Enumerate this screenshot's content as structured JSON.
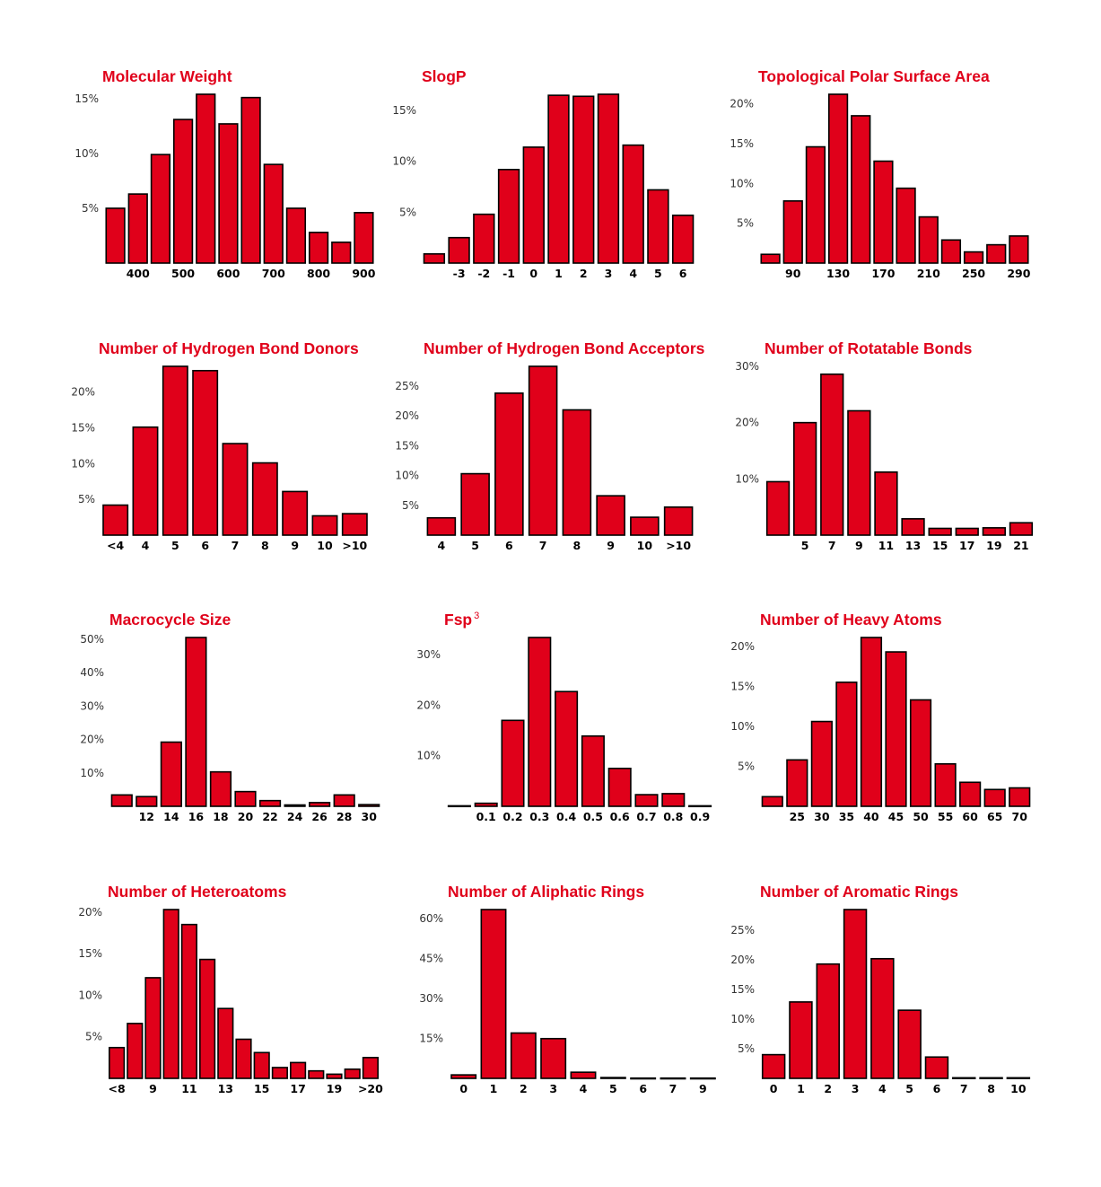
{
  "colors": {
    "bar_fill": "#e0001a",
    "bar_stroke": "#000000",
    "title": "#e0001a"
  },
  "chart_data": [
    {
      "type": "bar",
      "title": "Molecular Weight",
      "xlabel": "",
      "ylabel": "",
      "values": [
        5.0,
        6.3,
        9.9,
        13.1,
        15.4,
        12.7,
        15.1,
        9.0,
        5.0,
        2.8,
        1.9,
        4.6
      ],
      "x_tick_labels": [
        "400",
        "500",
        "600",
        "700",
        "800",
        "900"
      ],
      "y_ticks": [
        5,
        10,
        15
      ],
      "ylim": [
        0,
        15.4
      ]
    },
    {
      "type": "bar",
      "title": "SlogP",
      "xlabel": "",
      "ylabel": "",
      "values": [
        0.9,
        2.5,
        4.8,
        9.2,
        11.4,
        16.5,
        16.4,
        16.6,
        11.6,
        7.2,
        4.7
      ],
      "x_tick_labels": [
        "-3",
        "-2",
        "-1",
        "0",
        "1",
        "2",
        "3",
        "4",
        "5",
        "6"
      ],
      "y_ticks": [
        5,
        10,
        15
      ],
      "ylim": [
        0,
        16.6
      ]
    },
    {
      "type": "bar",
      "title": "Topological Polar Surface Area",
      "xlabel": "",
      "ylabel": "",
      "values": [
        1.1,
        7.8,
        14.6,
        21.2,
        18.5,
        12.8,
        9.4,
        5.8,
        2.9,
        1.4,
        2.3,
        3.4
      ],
      "x_tick_labels": [
        "90",
        "130",
        "170",
        "210",
        "250",
        "290"
      ],
      "y_ticks": [
        5,
        10,
        15,
        20
      ],
      "ylim": [
        0,
        21.2
      ]
    },
    {
      "type": "bar",
      "title": "Number of Hydrogen Bond Donors",
      "xlabel": "",
      "ylabel": "",
      "values": [
        4.2,
        15.1,
        23.6,
        23.0,
        12.8,
        10.1,
        6.1,
        2.7,
        3.0
      ],
      "x_tick_labels": [
        "<4",
        "4",
        "5",
        "6",
        "7",
        "8",
        "9",
        "10",
        ">10"
      ],
      "y_ticks": [
        5,
        10,
        15,
        20
      ],
      "ylim": [
        0,
        23.6
      ]
    },
    {
      "type": "bar",
      "title": "Number of Hydrogen Bond Acceptors",
      "xlabel": "",
      "ylabel": "",
      "values": [
        2.9,
        10.3,
        23.8,
        28.3,
        21.0,
        6.6,
        3.0,
        4.7
      ],
      "x_tick_labels": [
        "4",
        "5",
        "6",
        "7",
        "8",
        "9",
        "10",
        ">10"
      ],
      "y_ticks": [
        5,
        10,
        15,
        20,
        25
      ],
      "ylim": [
        0,
        28.3
      ]
    },
    {
      "type": "bar",
      "title": "Number of Rotatable Bonds",
      "xlabel": "",
      "ylabel": "",
      "values": [
        9.5,
        20.0,
        28.6,
        22.1,
        11.2,
        2.9,
        1.2,
        1.2,
        1.3,
        2.2
      ],
      "x_tick_labels": [
        "5",
        "7",
        "9",
        "11",
        "13",
        "15",
        "17",
        "19",
        "21"
      ],
      "y_ticks": [
        10,
        20,
        30
      ],
      "ylim": [
        0,
        30
      ]
    },
    {
      "type": "bar",
      "title": "Macrocycle Size",
      "xlabel": "",
      "ylabel": "",
      "values": [
        3.4,
        2.9,
        19.2,
        50.5,
        10.3,
        4.4,
        1.7,
        0.4,
        1.1,
        3.4,
        0.5
      ],
      "x_tick_labels": [
        "12",
        "14",
        "16",
        "18",
        "20",
        "22",
        "24",
        "26",
        "28",
        "30"
      ],
      "y_ticks": [
        10,
        20,
        30,
        40,
        50
      ],
      "ylim": [
        0,
        50.5
      ]
    },
    {
      "type": "bar",
      "title": "Fsp",
      "title_superscript": "3",
      "xlabel": "",
      "ylabel": "",
      "values": [
        0.1,
        0.6,
        17.0,
        33.4,
        22.7,
        13.9,
        7.5,
        2.3,
        2.5,
        0.1
      ],
      "x_tick_labels": [
        "0.1",
        "0.2",
        "0.3",
        "0.4",
        "0.5",
        "0.6",
        "0.7",
        "0.8",
        "0.9"
      ],
      "y_ticks": [
        10,
        20,
        30
      ],
      "ylim": [
        0,
        33.4
      ]
    },
    {
      "type": "bar",
      "title": "Number of Heavy Atoms",
      "xlabel": "",
      "ylabel": "",
      "values": [
        1.2,
        5.8,
        10.6,
        15.5,
        21.1,
        19.3,
        13.3,
        5.3,
        3.0,
        2.1,
        2.3
      ],
      "x_tick_labels": [
        "25",
        "30",
        "35",
        "40",
        "45",
        "50",
        "55",
        "60",
        "65",
        "70"
      ],
      "y_ticks": [
        5,
        10,
        15,
        20
      ],
      "ylim": [
        0,
        21.1
      ]
    },
    {
      "type": "bar",
      "title": "Number of Heteroatoms",
      "xlabel": "",
      "ylabel": "",
      "values": [
        3.7,
        6.6,
        12.1,
        20.3,
        18.5,
        14.3,
        8.4,
        4.7,
        3.1,
        1.3,
        1.9,
        0.9,
        0.5,
        1.1,
        2.5
      ],
      "x_tick_labels": [
        "<8",
        "9",
        "11",
        "13",
        "15",
        "17",
        "19",
        ">20"
      ],
      "y_ticks": [
        5,
        10,
        15,
        20
      ],
      "ylim": [
        0,
        20.3
      ]
    },
    {
      "type": "bar",
      "title": "Number of Aliphatic Rings",
      "xlabel": "",
      "ylabel": "",
      "values": [
        1.3,
        63.3,
        17.0,
        14.9,
        2.3,
        0.3,
        0.1,
        0.1,
        0.1
      ],
      "x_tick_labels": [
        "0",
        "1",
        "2",
        "3",
        "4",
        "5",
        "6",
        "7",
        "9"
      ],
      "y_ticks": [
        15,
        30,
        45,
        60
      ],
      "ylim": [
        0,
        63.3
      ]
    },
    {
      "type": "bar",
      "title": "Number of Aromatic Rings",
      "xlabel": "",
      "ylabel": "",
      "values": [
        4.0,
        12.9,
        19.3,
        28.5,
        20.2,
        11.5,
        3.6,
        0.1,
        0.1,
        0.1
      ],
      "x_tick_labels": [
        "0",
        "1",
        "2",
        "3",
        "4",
        "5",
        "6",
        "7",
        "8",
        "10"
      ],
      "y_ticks": [
        5,
        10,
        15,
        20,
        25
      ],
      "ylim": [
        0,
        28.5
      ]
    }
  ]
}
